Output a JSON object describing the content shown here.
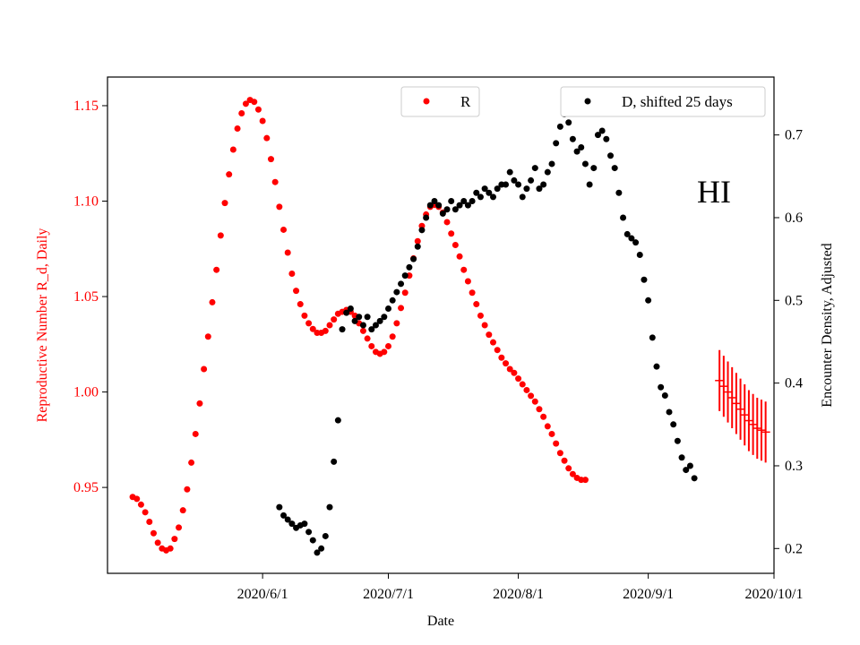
{
  "chart_data": {
    "type": "scatter",
    "title": "",
    "xlabel": "Date",
    "ylabel_left": "Reproductive Number R_d, Daily",
    "ylabel_right": "Encounter Density, Adjusted",
    "annotation": "HI",
    "x_ticks": [
      "2020/6/1",
      "2020/7/1",
      "2020/8/1",
      "2020/9/1",
      "2020/10/1"
    ],
    "y_left_ticks": [
      "0.95",
      "1.00",
      "1.05",
      "1.10",
      "1.15"
    ],
    "y_right_ticks": [
      "0.2",
      "0.3",
      "0.4",
      "0.5",
      "0.6",
      "0.7"
    ],
    "x_range": [
      "2020-04-25",
      "2020-10-01"
    ],
    "y_left_range": [
      0.905,
      1.165
    ],
    "y_right_range": [
      0.17,
      0.77
    ],
    "legend_left": {
      "position": "top-center",
      "entries": [
        {
          "label": "R",
          "color": "#ff0000"
        }
      ]
    },
    "legend_right": {
      "position": "top-right",
      "entries": [
        {
          "label": "D, shifted 25 days",
          "color": "#000000"
        }
      ]
    },
    "series": [
      {
        "name": "R",
        "axis": "left",
        "color": "#ff0000",
        "points": [
          [
            "2020-05-01",
            0.945
          ],
          [
            "2020-05-02",
            0.944
          ],
          [
            "2020-05-03",
            0.941
          ],
          [
            "2020-05-04",
            0.937
          ],
          [
            "2020-05-05",
            0.932
          ],
          [
            "2020-05-06",
            0.926
          ],
          [
            "2020-05-07",
            0.921
          ],
          [
            "2020-05-08",
            0.918
          ],
          [
            "2020-05-09",
            0.917
          ],
          [
            "2020-05-10",
            0.918
          ],
          [
            "2020-05-11",
            0.923
          ],
          [
            "2020-05-12",
            0.929
          ],
          [
            "2020-05-13",
            0.938
          ],
          [
            "2020-05-14",
            0.949
          ],
          [
            "2020-05-15",
            0.963
          ],
          [
            "2020-05-16",
            0.978
          ],
          [
            "2020-05-17",
            0.994
          ],
          [
            "2020-05-18",
            1.012
          ],
          [
            "2020-05-19",
            1.029
          ],
          [
            "2020-05-20",
            1.047
          ],
          [
            "2020-05-21",
            1.064
          ],
          [
            "2020-05-22",
            1.082
          ],
          [
            "2020-05-23",
            1.099
          ],
          [
            "2020-05-24",
            1.114
          ],
          [
            "2020-05-25",
            1.127
          ],
          [
            "2020-05-26",
            1.138
          ],
          [
            "2020-05-27",
            1.146
          ],
          [
            "2020-05-28",
            1.151
          ],
          [
            "2020-05-29",
            1.153
          ],
          [
            "2020-05-30",
            1.152
          ],
          [
            "2020-05-31",
            1.148
          ],
          [
            "2020-06-01",
            1.142
          ],
          [
            "2020-06-02",
            1.133
          ],
          [
            "2020-06-03",
            1.122
          ],
          [
            "2020-06-04",
            1.11
          ],
          [
            "2020-06-05",
            1.097
          ],
          [
            "2020-06-06",
            1.085
          ],
          [
            "2020-06-07",
            1.073
          ],
          [
            "2020-06-08",
            1.062
          ],
          [
            "2020-06-09",
            1.053
          ],
          [
            "2020-06-10",
            1.046
          ],
          [
            "2020-06-11",
            1.04
          ],
          [
            "2020-06-12",
            1.036
          ],
          [
            "2020-06-13",
            1.033
          ],
          [
            "2020-06-14",
            1.031
          ],
          [
            "2020-06-15",
            1.031
          ],
          [
            "2020-06-16",
            1.032
          ],
          [
            "2020-06-17",
            1.035
          ],
          [
            "2020-06-18",
            1.038
          ],
          [
            "2020-06-19",
            1.041
          ],
          [
            "2020-06-20",
            1.042
          ],
          [
            "2020-06-21",
            1.043
          ],
          [
            "2020-06-22",
            1.042
          ],
          [
            "2020-06-23",
            1.04
          ],
          [
            "2020-06-24",
            1.036
          ],
          [
            "2020-06-25",
            1.032
          ],
          [
            "2020-06-26",
            1.028
          ],
          [
            "2020-06-27",
            1.024
          ],
          [
            "2020-06-28",
            1.021
          ],
          [
            "2020-06-29",
            1.02
          ],
          [
            "2020-06-30",
            1.021
          ],
          [
            "2020-07-01",
            1.024
          ],
          [
            "2020-07-02",
            1.029
          ],
          [
            "2020-07-03",
            1.036
          ],
          [
            "2020-07-04",
            1.044
          ],
          [
            "2020-07-05",
            1.052
          ],
          [
            "2020-07-06",
            1.061
          ],
          [
            "2020-07-07",
            1.07
          ],
          [
            "2020-07-08",
            1.079
          ],
          [
            "2020-07-09",
            1.087
          ],
          [
            "2020-07-10",
            1.093
          ],
          [
            "2020-07-11",
            1.097
          ],
          [
            "2020-07-12",
            1.098
          ],
          [
            "2020-07-13",
            1.097
          ],
          [
            "2020-07-14",
            1.094
          ],
          [
            "2020-07-15",
            1.089
          ],
          [
            "2020-07-16",
            1.083
          ],
          [
            "2020-07-17",
            1.077
          ],
          [
            "2020-07-18",
            1.071
          ],
          [
            "2020-07-19",
            1.064
          ],
          [
            "2020-07-20",
            1.058
          ],
          [
            "2020-07-21",
            1.052
          ],
          [
            "2020-07-22",
            1.046
          ],
          [
            "2020-07-23",
            1.04
          ],
          [
            "2020-07-24",
            1.035
          ],
          [
            "2020-07-25",
            1.03
          ],
          [
            "2020-07-26",
            1.026
          ],
          [
            "2020-07-27",
            1.022
          ],
          [
            "2020-07-28",
            1.018
          ],
          [
            "2020-07-29",
            1.015
          ],
          [
            "2020-07-30",
            1.012
          ],
          [
            "2020-07-31",
            1.01
          ],
          [
            "2020-08-01",
            1.007
          ],
          [
            "2020-08-02",
            1.004
          ],
          [
            "2020-08-03",
            1.001
          ],
          [
            "2020-08-04",
            0.998
          ],
          [
            "2020-08-05",
            0.995
          ],
          [
            "2020-08-06",
            0.991
          ],
          [
            "2020-08-07",
            0.987
          ],
          [
            "2020-08-08",
            0.982
          ],
          [
            "2020-08-09",
            0.978
          ],
          [
            "2020-08-10",
            0.973
          ],
          [
            "2020-08-11",
            0.968
          ],
          [
            "2020-08-12",
            0.964
          ],
          [
            "2020-08-13",
            0.96
          ],
          [
            "2020-08-14",
            0.957
          ],
          [
            "2020-08-15",
            0.955
          ],
          [
            "2020-08-16",
            0.954
          ],
          [
            "2020-08-17",
            0.954
          ]
        ]
      },
      {
        "name": "D, shifted 25 days",
        "axis": "right",
        "color": "#000000",
        "points": [
          [
            "2020-06-05",
            0.25
          ],
          [
            "2020-06-06",
            0.24
          ],
          [
            "2020-06-07",
            0.235
          ],
          [
            "2020-06-08",
            0.23
          ],
          [
            "2020-06-09",
            0.225
          ],
          [
            "2020-06-10",
            0.228
          ],
          [
            "2020-06-11",
            0.23
          ],
          [
            "2020-06-12",
            0.22
          ],
          [
            "2020-06-13",
            0.21
          ],
          [
            "2020-06-14",
            0.195
          ],
          [
            "2020-06-15",
            0.2
          ],
          [
            "2020-06-16",
            0.215
          ],
          [
            "2020-06-17",
            0.25
          ],
          [
            "2020-06-18",
            0.305
          ],
          [
            "2020-06-19",
            0.355
          ],
          [
            "2020-06-20",
            0.465
          ],
          [
            "2020-06-21",
            0.485
          ],
          [
            "2020-06-22",
            0.49
          ],
          [
            "2020-06-23",
            0.475
          ],
          [
            "2020-06-24",
            0.48
          ],
          [
            "2020-06-25",
            0.47
          ],
          [
            "2020-06-26",
            0.48
          ],
          [
            "2020-06-27",
            0.465
          ],
          [
            "2020-06-28",
            0.47
          ],
          [
            "2020-06-29",
            0.475
          ],
          [
            "2020-06-30",
            0.48
          ],
          [
            "2020-07-01",
            0.49
          ],
          [
            "2020-07-02",
            0.5
          ],
          [
            "2020-07-03",
            0.51
          ],
          [
            "2020-07-04",
            0.52
          ],
          [
            "2020-07-05",
            0.53
          ],
          [
            "2020-07-06",
            0.54
          ],
          [
            "2020-07-07",
            0.55
          ],
          [
            "2020-07-08",
            0.565
          ],
          [
            "2020-07-09",
            0.585
          ],
          [
            "2020-07-10",
            0.6
          ],
          [
            "2020-07-11",
            0.615
          ],
          [
            "2020-07-12",
            0.62
          ],
          [
            "2020-07-13",
            0.615
          ],
          [
            "2020-07-14",
            0.605
          ],
          [
            "2020-07-15",
            0.61
          ],
          [
            "2020-07-16",
            0.62
          ],
          [
            "2020-07-17",
            0.61
          ],
          [
            "2020-07-18",
            0.615
          ],
          [
            "2020-07-19",
            0.62
          ],
          [
            "2020-07-20",
            0.615
          ],
          [
            "2020-07-21",
            0.62
          ],
          [
            "2020-07-22",
            0.63
          ],
          [
            "2020-07-23",
            0.625
          ],
          [
            "2020-07-24",
            0.635
          ],
          [
            "2020-07-25",
            0.63
          ],
          [
            "2020-07-26",
            0.625
          ],
          [
            "2020-07-27",
            0.635
          ],
          [
            "2020-07-28",
            0.64
          ],
          [
            "2020-07-29",
            0.64
          ],
          [
            "2020-07-30",
            0.655
          ],
          [
            "2020-07-31",
            0.645
          ],
          [
            "2020-08-01",
            0.64
          ],
          [
            "2020-08-02",
            0.625
          ],
          [
            "2020-08-03",
            0.635
          ],
          [
            "2020-08-04",
            0.645
          ],
          [
            "2020-08-05",
            0.66
          ],
          [
            "2020-08-06",
            0.635
          ],
          [
            "2020-08-07",
            0.64
          ],
          [
            "2020-08-08",
            0.655
          ],
          [
            "2020-08-09",
            0.665
          ],
          [
            "2020-08-10",
            0.69
          ],
          [
            "2020-08-11",
            0.71
          ],
          [
            "2020-08-12",
            0.725
          ],
          [
            "2020-08-13",
            0.715
          ],
          [
            "2020-08-14",
            0.695
          ],
          [
            "2020-08-15",
            0.68
          ],
          [
            "2020-08-16",
            0.685
          ],
          [
            "2020-08-17",
            0.665
          ],
          [
            "2020-08-18",
            0.64
          ],
          [
            "2020-08-19",
            0.66
          ],
          [
            "2020-08-20",
            0.7
          ],
          [
            "2020-08-21",
            0.705
          ],
          [
            "2020-08-22",
            0.695
          ],
          [
            "2020-08-23",
            0.675
          ],
          [
            "2020-08-24",
            0.66
          ],
          [
            "2020-08-25",
            0.63
          ],
          [
            "2020-08-26",
            0.6
          ],
          [
            "2020-08-27",
            0.58
          ],
          [
            "2020-08-28",
            0.575
          ],
          [
            "2020-08-29",
            0.57
          ],
          [
            "2020-08-30",
            0.555
          ],
          [
            "2020-08-31",
            0.525
          ],
          [
            "2020-09-01",
            0.5
          ],
          [
            "2020-09-02",
            0.455
          ],
          [
            "2020-09-03",
            0.42
          ],
          [
            "2020-09-04",
            0.395
          ],
          [
            "2020-09-05",
            0.385
          ],
          [
            "2020-09-06",
            0.365
          ],
          [
            "2020-09-07",
            0.35
          ],
          [
            "2020-09-08",
            0.33
          ],
          [
            "2020-09-09",
            0.31
          ],
          [
            "2020-09-10",
            0.295
          ],
          [
            "2020-09-11",
            0.3
          ],
          [
            "2020-09-12",
            0.285
          ]
        ]
      },
      {
        "name": "R_d (error bars)",
        "axis": "left",
        "color": "#ff0000",
        "points": [
          [
            "2020-09-18",
            1.006,
            0.016
          ],
          [
            "2020-09-19",
            1.003,
            0.016
          ],
          [
            "2020-09-20",
            1.0,
            0.016
          ],
          [
            "2020-09-21",
            0.997,
            0.016
          ],
          [
            "2020-09-22",
            0.994,
            0.016
          ],
          [
            "2020-09-23",
            0.991,
            0.016
          ],
          [
            "2020-09-24",
            0.988,
            0.016
          ],
          [
            "2020-09-25",
            0.985,
            0.016
          ],
          [
            "2020-09-26",
            0.983,
            0.016
          ],
          [
            "2020-09-27",
            0.981,
            0.016
          ],
          [
            "2020-09-28",
            0.98,
            0.016
          ],
          [
            "2020-09-29",
            0.979,
            0.016
          ]
        ]
      }
    ]
  }
}
